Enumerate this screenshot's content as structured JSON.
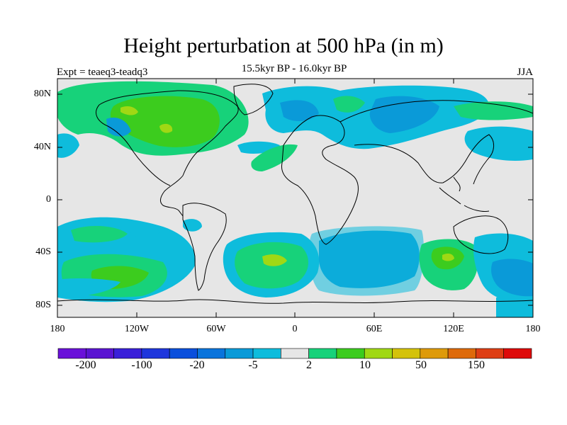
{
  "title": "Height perturbation at 500 hPa (in m)",
  "subtitle": "15.5kyr BP - 16.0kyr BP",
  "experiment": "Expt = teaeq3-teadq3",
  "season": "JJA",
  "lat_ticks": [
    "80N",
    "40N",
    "0",
    "40S",
    "80S"
  ],
  "lon_ticks": [
    "180",
    "120W",
    "60W",
    "0",
    "60E",
    "120E",
    "180"
  ],
  "colorbar": {
    "colors": [
      "#6a11d9",
      "#5a14d2",
      "#3a20d9",
      "#1e36dc",
      "#0a4fdc",
      "#0a74dc",
      "#0a9ad8",
      "#0ebcdc",
      "#e6e6e6",
      "#17d27a",
      "#3ccc1e",
      "#a0d814",
      "#d4c20a",
      "#de9a0a",
      "#de6a0a",
      "#de3e14",
      "#de0a0a"
    ],
    "labels": [
      "-200",
      "-100",
      "-20",
      "-5",
      "2",
      "10",
      "50",
      "150"
    ]
  },
  "palette": {
    "ocean_bg": "#e6e6e6",
    "teal": "#0ebcdc",
    "blue": "#0a9ad8",
    "green": "#17d27a",
    "lime": "#3ccc1e",
    "yellow": "#a0d814"
  }
}
